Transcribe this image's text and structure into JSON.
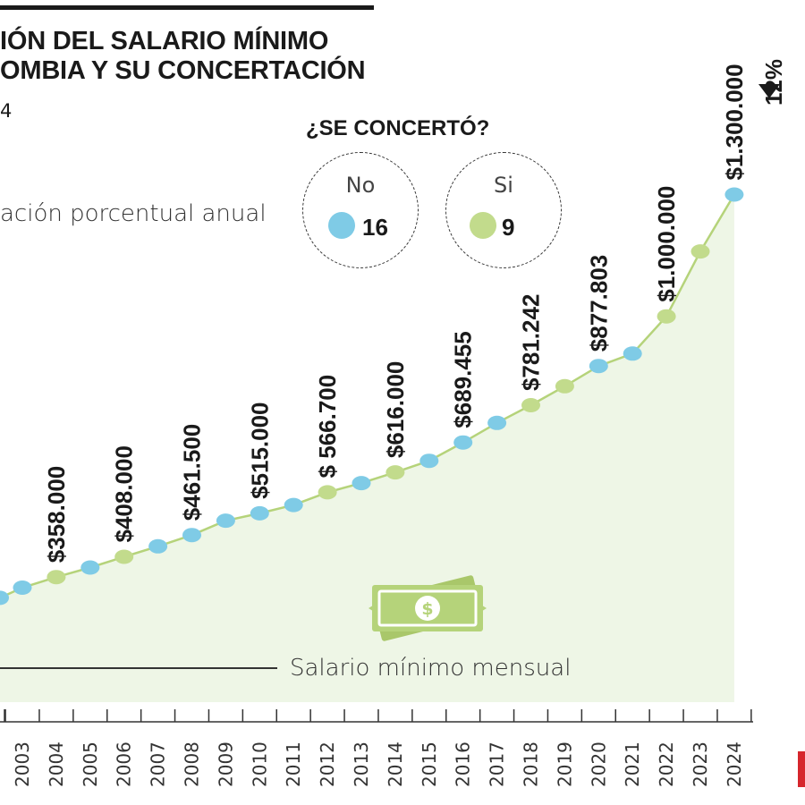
{
  "header": {
    "title_line1": "IÓN DEL SALARIO MÍNIMO",
    "title_line2": "OMBIA Y SU CONCERTACIÓN",
    "subtitle": "4"
  },
  "legend": {
    "percent_label": "ación porcentual anual",
    "salary_label": "Salario mínimo mensual"
  },
  "concertation": {
    "title": "¿SE CONCERTÓ?",
    "no": {
      "label": "No",
      "count": "16",
      "color": "#7fcbe6"
    },
    "si": {
      "label": "Si",
      "count": "9",
      "color": "#c2db8c"
    }
  },
  "increase": {
    "label": "12%"
  },
  "colors": {
    "line": "#b5d37a",
    "area": "#eef6e6",
    "axis": "#333333"
  },
  "chart_data": {
    "type": "line",
    "x": [
      "2003",
      "2004",
      "2005",
      "2006",
      "2007",
      "2008",
      "2009",
      "2010",
      "2011",
      "2012",
      "2013",
      "2014",
      "2015",
      "2016",
      "2017",
      "2018",
      "2019",
      "2020",
      "2021",
      "2022",
      "2023",
      "2024"
    ],
    "y": [
      332000,
      358000,
      381500,
      408000,
      433700,
      461500,
      496900,
      515000,
      535600,
      566700,
      589500,
      616000,
      644350,
      689455,
      737717,
      781242,
      828116,
      877803,
      908526,
      1000000,
      1160000,
      1300000
    ],
    "concerted": [
      "no",
      "si",
      "no",
      "si",
      "no",
      "no",
      "no",
      "no",
      "no",
      "si",
      "no",
      "si",
      "no",
      "no",
      "no",
      "si",
      "si",
      "no",
      "no",
      "si",
      "si",
      "no"
    ],
    "value_labels": [
      "",
      "$358.000",
      "",
      "$408.000",
      "",
      "$461.500",
      "",
      "$515.000",
      "",
      "$ 566.700",
      "",
      "$616.000",
      "",
      "$689.455",
      "",
      "$781.242",
      "",
      "$877.803",
      "",
      "$1.000.000",
      "",
      "$1.300.000"
    ],
    "xlabel": "",
    "ylabel": "Salario mínimo mensual"
  }
}
